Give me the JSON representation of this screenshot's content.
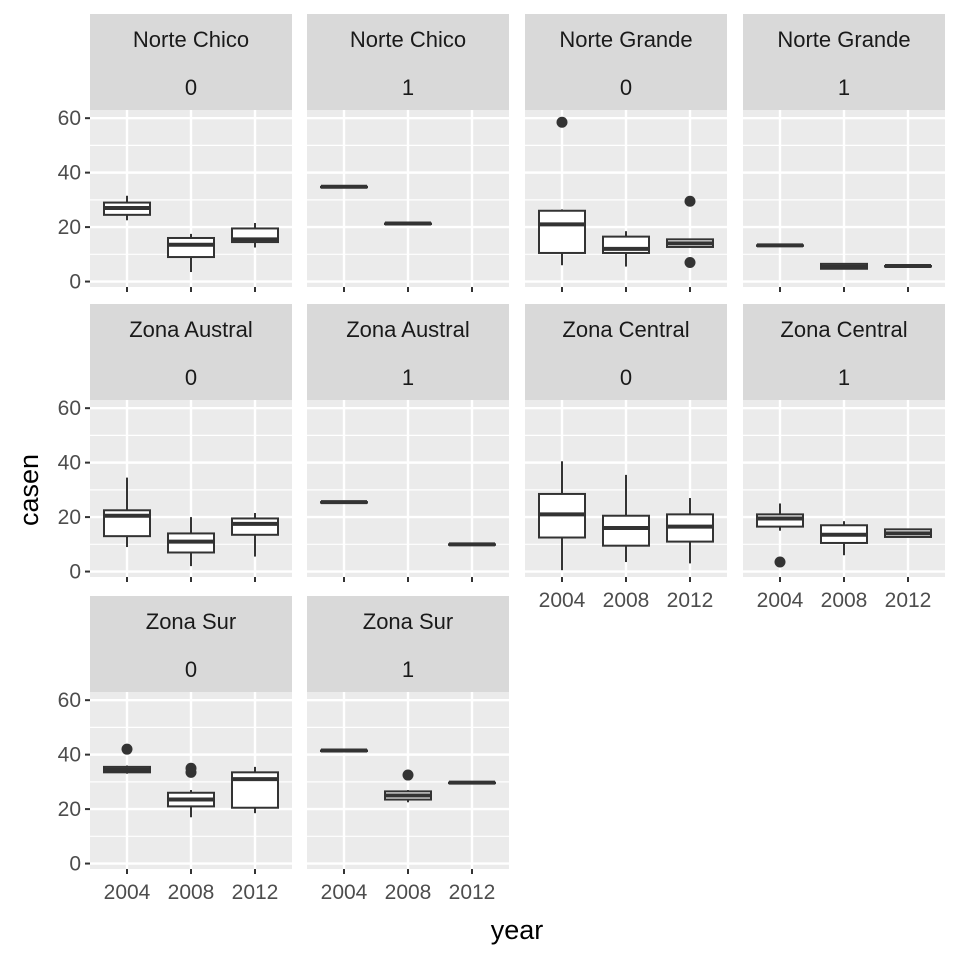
{
  "chart_data": {
    "type": "boxplot",
    "xlabel": "year",
    "ylabel": "casen",
    "x_categories": [
      "2004",
      "2008",
      "2012"
    ],
    "y_ticks": [
      0,
      20,
      40,
      60
    ],
    "ylim": [
      -2,
      63
    ],
    "facet_layout": "4 columns x 3 rows",
    "grid": true,
    "colors": {
      "panel_bg": "#ebebeb",
      "strip_bg": "#d9d9d9",
      "grid": "#ffffff",
      "box_line": "#333333",
      "box_fill": "#ffffff"
    },
    "panels": [
      {
        "strip": [
          "Norte Chico",
          "0"
        ],
        "boxes": [
          {
            "x": "2004",
            "lo": 22.5,
            "q1": 24.5,
            "med": 27,
            "q3": 29,
            "hi": 31.5,
            "outliers": []
          },
          {
            "x": "2008",
            "lo": 3.5,
            "q1": 9,
            "med": 13.5,
            "q3": 16,
            "hi": 17.5,
            "outliers": []
          },
          {
            "x": "2012",
            "lo": 12.5,
            "q1": 14.5,
            "med": 15.5,
            "q3": 19.5,
            "hi": 21.5,
            "outliers": []
          }
        ]
      },
      {
        "strip": [
          "Norte Chico",
          "1"
        ],
        "boxes": [
          {
            "x": "2004",
            "lo": 34.8,
            "q1": 34.8,
            "med": 34.8,
            "q3": 34.8,
            "hi": 34.8,
            "outliers": []
          },
          {
            "x": "2008",
            "lo": 21.3,
            "q1": 21.3,
            "med": 21.3,
            "q3": 21.3,
            "hi": 21.3,
            "outliers": []
          }
        ]
      },
      {
        "strip": [
          "Norte Grande",
          "0"
        ],
        "boxes": [
          {
            "x": "2004",
            "lo": 6,
            "q1": 10.5,
            "med": 21,
            "q3": 26,
            "hi": 26.5,
            "outliers": [
              58.5
            ]
          },
          {
            "x": "2008",
            "lo": 5.5,
            "q1": 10.5,
            "med": 12,
            "q3": 16.5,
            "hi": 18.5,
            "outliers": []
          },
          {
            "x": "2012",
            "lo": 12.5,
            "q1": 12.7,
            "med": 14,
            "q3": 15.5,
            "hi": 15.5,
            "outliers": [
              29.5,
              7
            ]
          }
        ]
      },
      {
        "strip": [
          "Norte Grande",
          "1"
        ],
        "boxes": [
          {
            "x": "2004",
            "lo": 13.3,
            "q1": 13.3,
            "med": 13.3,
            "q3": 13.3,
            "hi": 13.3,
            "outliers": []
          },
          {
            "x": "2008",
            "lo": 4.5,
            "q1": 4.7,
            "med": 5.5,
            "q3": 6.5,
            "hi": 6.7,
            "outliers": []
          },
          {
            "x": "2012",
            "lo": 5.7,
            "q1": 5.7,
            "med": 5.7,
            "q3": 5.7,
            "hi": 5.7,
            "outliers": []
          }
        ]
      },
      {
        "strip": [
          "Zona Austral",
          "0"
        ],
        "boxes": [
          {
            "x": "2004",
            "lo": 9,
            "q1": 13,
            "med": 20.5,
            "q3": 22.5,
            "hi": 34.5,
            "outliers": []
          },
          {
            "x": "2008",
            "lo": 2,
            "q1": 7,
            "med": 11,
            "q3": 14,
            "hi": 20,
            "outliers": []
          },
          {
            "x": "2012",
            "lo": 5.5,
            "q1": 13.5,
            "med": 17.5,
            "q3": 19.5,
            "hi": 21.5,
            "outliers": []
          }
        ]
      },
      {
        "strip": [
          "Zona Austral",
          "1"
        ],
        "boxes": [
          {
            "x": "2004",
            "lo": 25.5,
            "q1": 25.5,
            "med": 25.5,
            "q3": 25.5,
            "hi": 25.5,
            "outliers": []
          },
          {
            "x": "2012",
            "lo": 10,
            "q1": 10,
            "med": 10,
            "q3": 10,
            "hi": 10,
            "outliers": []
          }
        ]
      },
      {
        "strip": [
          "Zona Central",
          "0"
        ],
        "boxes": [
          {
            "x": "2004",
            "lo": 0.5,
            "q1": 12.5,
            "med": 21,
            "q3": 28.5,
            "hi": 40.5,
            "outliers": []
          },
          {
            "x": "2008",
            "lo": 3.5,
            "q1": 9.5,
            "med": 16,
            "q3": 20.5,
            "hi": 35.5,
            "outliers": []
          },
          {
            "x": "2012",
            "lo": 3,
            "q1": 11,
            "med": 16.5,
            "q3": 21,
            "hi": 27,
            "outliers": []
          }
        ]
      },
      {
        "strip": [
          "Zona Central",
          "1"
        ],
        "boxes": [
          {
            "x": "2004",
            "lo": 15,
            "q1": 16.5,
            "med": 19.5,
            "q3": 21,
            "hi": 25,
            "outliers": [
              3.5
            ]
          },
          {
            "x": "2008",
            "lo": 6,
            "q1": 10.5,
            "med": 13.5,
            "q3": 17,
            "hi": 18.5,
            "outliers": []
          },
          {
            "x": "2012",
            "lo": 12.5,
            "q1": 12.7,
            "med": 14,
            "q3": 15.5,
            "hi": 15.7,
            "outliers": []
          }
        ]
      },
      {
        "strip": [
          "Zona Sur",
          "0"
        ],
        "boxes": [
          {
            "x": "2004",
            "lo": 33,
            "q1": 33.5,
            "med": 34.5,
            "q3": 35.5,
            "hi": 36,
            "outliers": [
              42
            ]
          },
          {
            "x": "2008",
            "lo": 17,
            "q1": 21,
            "med": 23.5,
            "q3": 26,
            "hi": 27,
            "outliers": [
              33.5,
              35
            ]
          },
          {
            "x": "2012",
            "lo": 18.5,
            "q1": 20.5,
            "med": 31,
            "q3": 33.5,
            "hi": 35.5,
            "outliers": []
          }
        ]
      },
      {
        "strip": [
          "Zona Sur",
          "1"
        ],
        "boxes": [
          {
            "x": "2004",
            "lo": 41.5,
            "q1": 41.5,
            "med": 41.5,
            "q3": 41.5,
            "hi": 41.5,
            "outliers": []
          },
          {
            "x": "2008",
            "lo": 22.5,
            "q1": 23.5,
            "med": 25,
            "q3": 26.5,
            "hi": 27,
            "outliers": [
              32.5
            ]
          },
          {
            "x": "2012",
            "lo": 29.7,
            "q1": 29.7,
            "med": 29.7,
            "q3": 29.7,
            "hi": 29.7,
            "outliers": []
          }
        ]
      }
    ]
  }
}
